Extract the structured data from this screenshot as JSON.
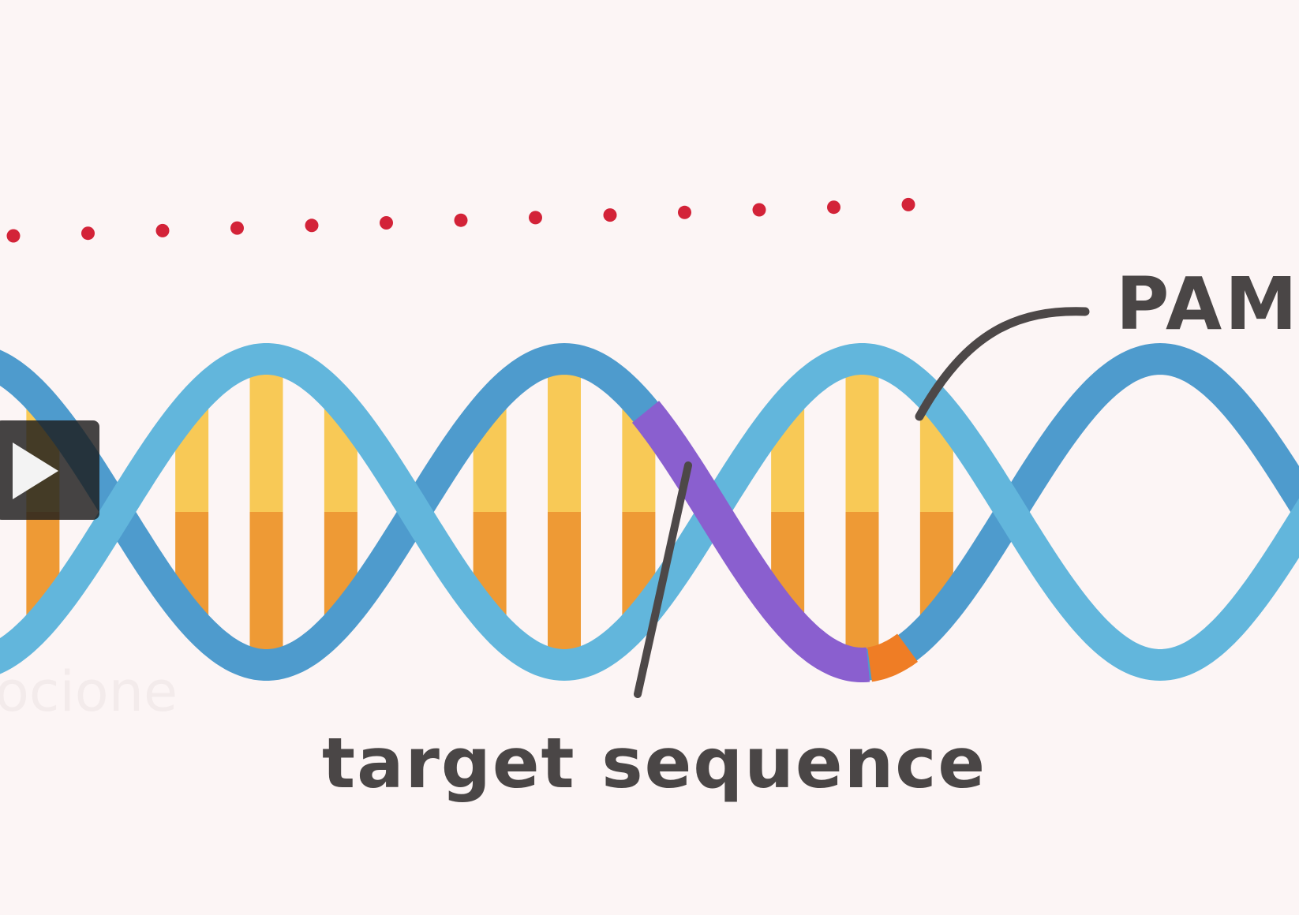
{
  "labels": {
    "pam": "PAM",
    "target_sequence": "target sequence",
    "watermark": "ocione"
  },
  "player": {
    "play_icon": "play-icon"
  },
  "colors": {
    "background": "#fcf5f5",
    "strand_back": "#4e9bcd",
    "strand_front": "#62b6dc",
    "base_top": "#f8c956",
    "base_bottom": "#ee9a35",
    "target_highlight": "#8a5fcf",
    "pam_highlight": "#ef7d25",
    "dots": "#d32338",
    "leader_line": "#4d4848",
    "text": "#4a4646"
  }
}
